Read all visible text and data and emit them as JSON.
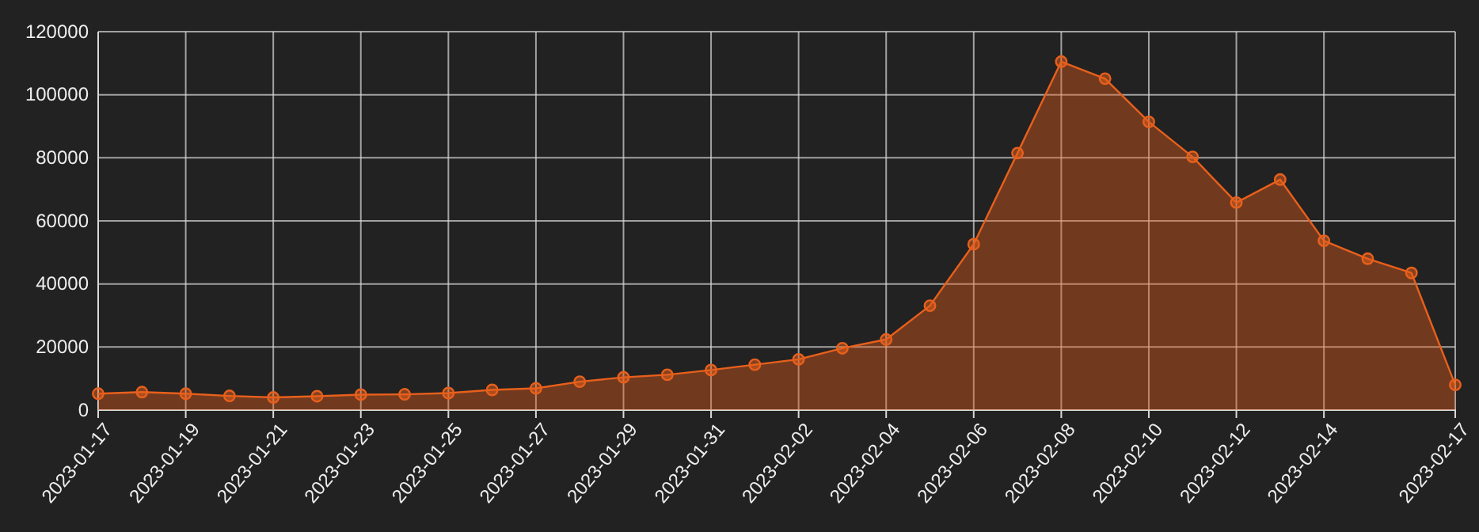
{
  "chart_data": {
    "type": "area",
    "x": [
      "2023-01-17",
      "2023-01-18",
      "2023-01-19",
      "2023-01-20",
      "2023-01-21",
      "2023-01-22",
      "2023-01-23",
      "2023-01-24",
      "2023-01-25",
      "2023-01-26",
      "2023-01-27",
      "2023-01-28",
      "2023-01-29",
      "2023-01-30",
      "2023-01-31",
      "2023-02-01",
      "2023-02-02",
      "2023-02-03",
      "2023-02-04",
      "2023-02-05",
      "2023-02-06",
      "2023-02-07",
      "2023-02-08",
      "2023-02-09",
      "2023-02-10",
      "2023-02-11",
      "2023-02-12",
      "2023-02-13",
      "2023-02-14",
      "2023-02-15",
      "2023-02-16",
      "2023-02-17"
    ],
    "series": [
      {
        "color": "#e8601c",
        "values": [
          5200,
          5700,
          5200,
          4500,
          4000,
          4400,
          4900,
          5000,
          5400,
          6400,
          6900,
          9000,
          10400,
          11200,
          12700,
          14400,
          16100,
          19600,
          22400,
          33100,
          52600,
          81500,
          110500,
          105100,
          91400,
          80300,
          65800,
          73100,
          53700,
          48000,
          43500,
          8000
        ]
      }
    ],
    "xlim": [
      "2023-01-17",
      "2023-02-17"
    ],
    "xticks": [
      "2023-01-17",
      "2023-01-19",
      "2023-01-21",
      "2023-01-23",
      "2023-01-25",
      "2023-01-27",
      "2023-01-29",
      "2023-01-31",
      "2023-02-02",
      "2023-02-04",
      "2023-02-06",
      "2023-02-08",
      "2023-02-10",
      "2023-02-12",
      "2023-02-14",
      "2023-02-17"
    ],
    "ylim": [
      0,
      120000
    ],
    "yticks": [
      0,
      20000,
      40000,
      60000,
      80000,
      100000,
      120000
    ],
    "grid": true,
    "marker": "circle",
    "line_style": "solid"
  }
}
